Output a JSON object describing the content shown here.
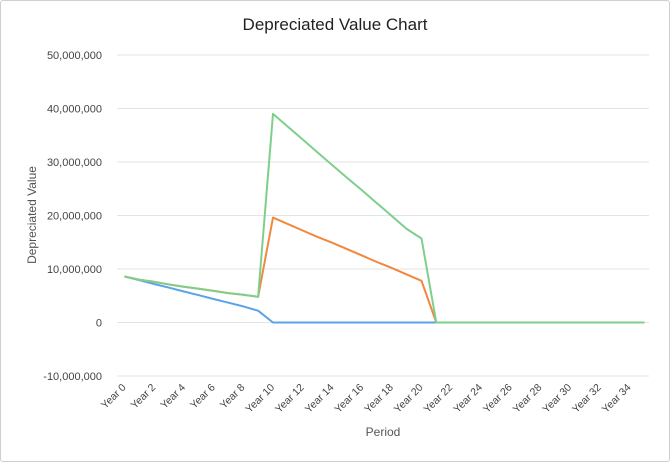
{
  "chart_data": {
    "type": "line",
    "title": "Depreciated Value Chart",
    "xlabel": "Period",
    "ylabel": "Depreciated Value",
    "ylim": [
      -10000000,
      50000000
    ],
    "y_ticks": [
      50000000,
      40000000,
      30000000,
      20000000,
      10000000,
      0,
      -10000000
    ],
    "y_tick_labels": [
      "50,000,000",
      "40,000,000",
      "30,000,000",
      "20,000,000",
      "10,000,000",
      "0",
      "-10,000,000"
    ],
    "x_tick_labels": [
      "Year 0",
      "Year 2",
      "Year 4",
      "Year 6",
      "Year 8",
      "Year 10",
      "Year 12",
      "Year 14",
      "Year 16",
      "Year 18",
      "Year 20",
      "Year 22",
      "Year 24",
      "Year 26",
      "Year 28",
      "Year 30",
      "Year 32",
      "Year 34"
    ],
    "x": [
      0,
      1,
      2,
      3,
      4,
      5,
      6,
      7,
      8,
      9,
      10,
      11,
      12,
      13,
      14,
      15,
      16,
      17,
      18,
      19,
      20,
      21,
      22,
      23,
      24,
      25,
      26,
      27,
      28,
      29,
      30,
      31,
      32,
      33,
      34,
      35
    ],
    "grid": true,
    "legend": false,
    "series": [
      {
        "color": "#5aa3e8",
        "values": [
          8600000,
          7900000,
          7200000,
          6500000,
          5800000,
          5100000,
          4400000,
          3700000,
          3000000,
          2200000,
          0,
          0,
          0,
          0,
          0,
          0,
          0,
          0,
          0,
          0,
          0,
          0,
          0,
          0,
          0,
          0,
          0,
          0,
          0,
          0,
          0,
          0,
          0,
          0,
          0,
          0
        ]
      },
      {
        "color": "#f0883e",
        "values": [
          8600000,
          8000000,
          7600000,
          7100000,
          6700000,
          6300000,
          5900000,
          5500000,
          5200000,
          4800000,
          19600000,
          18400000,
          17200000,
          16000000,
          14900000,
          13700000,
          12500000,
          11300000,
          10200000,
          9000000,
          7800000,
          0,
          0,
          0,
          0,
          0,
          0,
          0,
          0,
          0,
          0,
          0,
          0,
          0,
          0,
          0
        ]
      },
      {
        "color": "#7fcf8c",
        "values": [
          8600000,
          8000000,
          7600000,
          7100000,
          6700000,
          6300000,
          5900000,
          5500000,
          5200000,
          4800000,
          39000000,
          36600000,
          34200000,
          31800000,
          29400000,
          27000000,
          24700000,
          22300000,
          19900000,
          17500000,
          15700000,
          0,
          0,
          0,
          0,
          0,
          0,
          0,
          0,
          0,
          0,
          0,
          0,
          0,
          0,
          0
        ]
      }
    ]
  }
}
